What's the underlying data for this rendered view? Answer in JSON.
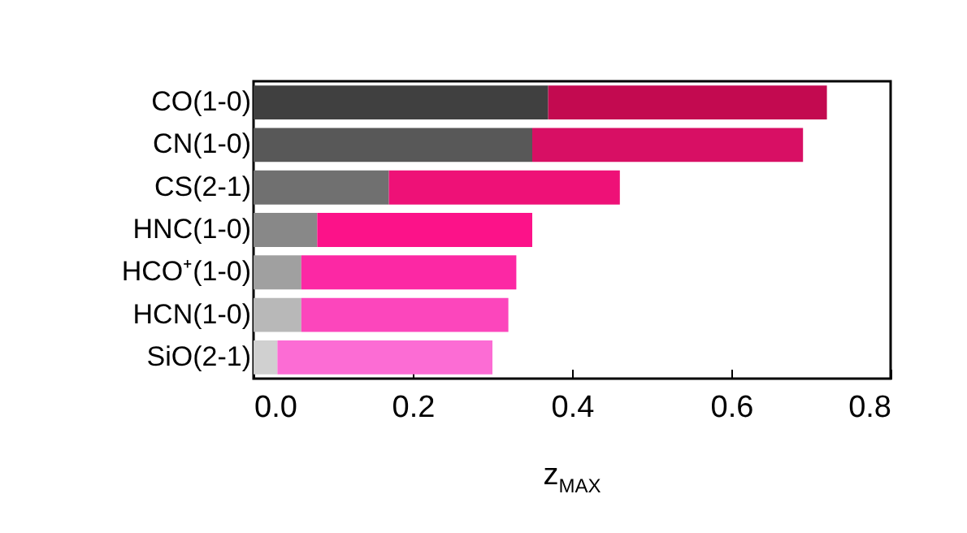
{
  "chart_data": {
    "type": "bar",
    "orientation": "horizontal",
    "stacked": true,
    "xlabel": "z$_{MAX}$",
    "categories": [
      "CO(1-0)",
      "CN(1-0)",
      "CS(2-1)",
      "HNC(1-0)",
      "HCO⁺(1-0)",
      "HCN(1-0)",
      "SiO(2-1)"
    ],
    "series": [
      {
        "colors": [
          "#404040",
          "#585858",
          "#707070",
          "#888888",
          "#a0a0a0",
          "#b8b8b8",
          "#d0d0d0"
        ],
        "values": [
          0.37,
          0.35,
          0.17,
          0.08,
          0.06,
          0.06,
          0.03
        ]
      },
      {
        "colors": [
          "#c30a50",
          "#d80f64",
          "#ee1177",
          "#fc1289",
          "#fc28a4",
          "#fc46bc",
          "#fc6cd4"
        ],
        "values": [
          0.35,
          0.34,
          0.29,
          0.27,
          0.27,
          0.26,
          0.27
        ]
      }
    ],
    "xlim": [
      0,
      0.8
    ],
    "xticks": [
      {
        "value": 0,
        "label": "0.0"
      },
      {
        "value": 0.2,
        "label": "0.2"
      },
      {
        "value": 0.4,
        "label": "0.4"
      },
      {
        "value": 0.6,
        "label": "0.6"
      },
      {
        "value": 0.8,
        "label": "0.8"
      }
    ],
    "grid": false,
    "legend": false
  }
}
